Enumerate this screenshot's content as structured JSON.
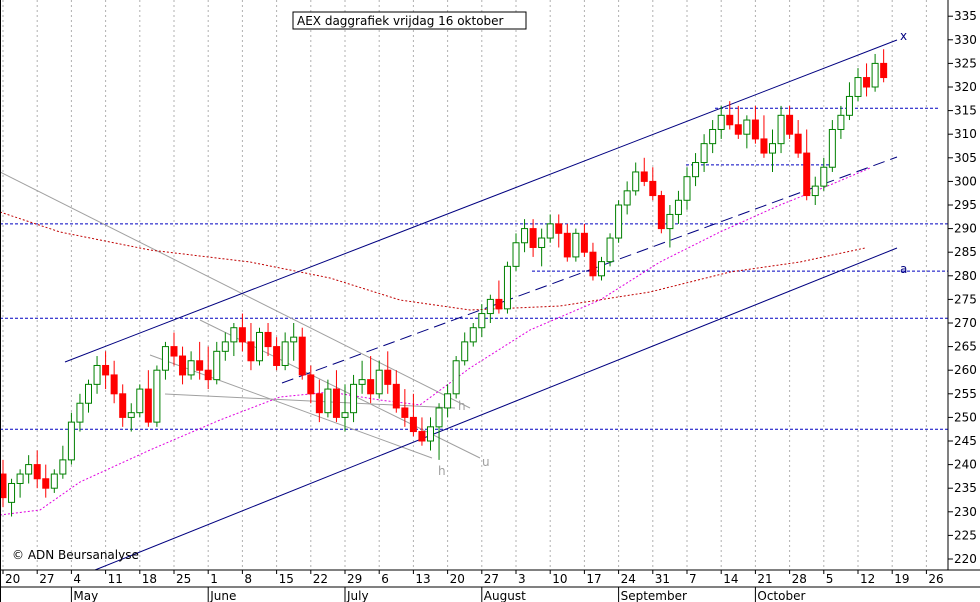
{
  "chart_data": {
    "type": "candlestick",
    "title": "AEX daggrafiek vrijdag 16 oktober",
    "copyright": "© ADN Beursanalyse",
    "y_axis": {
      "position": "right",
      "ylim": [
        219,
        338
      ],
      "ticks": [
        220,
        225,
        230,
        235,
        240,
        245,
        250,
        255,
        260,
        265,
        270,
        275,
        280,
        285,
        290,
        295,
        300,
        305,
        310,
        315,
        320,
        325,
        330,
        335
      ]
    },
    "x_axis": {
      "week_labels": [
        "20",
        "27",
        "4",
        "11",
        "18",
        "25",
        "1",
        "8",
        "15",
        "22",
        "29",
        "6",
        "13",
        "20",
        "27",
        "3",
        "10",
        "17",
        "24",
        "31",
        "7",
        "14",
        "21",
        "28",
        "5",
        "12",
        "19",
        "26"
      ],
      "months": [
        {
          "label": "May",
          "week_index": 2
        },
        {
          "label": "June",
          "week_index": 6
        },
        {
          "label": "July",
          "week_index": 10
        },
        {
          "label": "August",
          "week_index": 14
        },
        {
          "label": "September",
          "week_index": 18
        },
        {
          "label": "October",
          "week_index": 22
        }
      ]
    },
    "grid": {
      "vertical_dotted": true,
      "horizontal": false
    },
    "horizontal_levels": [
      315.5,
      303.5,
      291,
      281,
      271,
      247.5
    ],
    "annotations": [
      {
        "label": "x",
        "color": "#000080"
      },
      {
        "label": "a",
        "color": "#000080"
      },
      {
        "label": "h",
        "color": "#a0a0a0"
      },
      {
        "label": "u",
        "color": "#a0a0a0"
      },
      {
        "label": "h",
        "color": "#a0a0a0"
      }
    ],
    "colors": {
      "up": "#008000",
      "down": "#ff0000",
      "trend": "#000080",
      "level": "#0000c0",
      "ma_long": "#c00000",
      "ma_short": "#e000e0",
      "helper": "#a0a0a0"
    },
    "candles": [
      [
        238,
        241,
        231,
        233
      ],
      [
        232,
        237,
        229,
        236
      ],
      [
        236,
        239,
        233,
        238
      ],
      [
        238,
        242,
        236,
        240
      ],
      [
        240,
        243,
        235,
        237
      ],
      [
        237,
        240,
        233,
        235
      ],
      [
        235,
        239,
        234,
        238
      ],
      [
        238,
        244,
        237,
        241
      ],
      [
        241,
        251,
        240,
        249
      ],
      [
        249,
        255,
        247,
        253
      ],
      [
        253,
        258,
        251,
        257
      ],
      [
        257,
        263,
        255,
        261
      ],
      [
        261,
        264,
        256,
        259
      ],
      [
        259,
        262,
        253,
        255
      ],
      [
        255,
        257,
        248,
        250
      ],
      [
        250,
        253,
        247,
        251
      ],
      [
        251,
        257,
        250,
        256
      ],
      [
        256,
        260,
        248,
        249
      ],
      [
        249,
        261,
        248,
        260
      ],
      [
        260,
        266,
        258,
        265
      ],
      [
        265,
        268,
        261,
        263
      ],
      [
        263,
        265,
        257,
        259
      ],
      [
        259,
        264,
        258,
        262
      ],
      [
        262,
        266,
        258,
        260
      ],
      [
        260,
        265,
        256,
        258
      ],
      [
        258,
        266,
        257,
        264
      ],
      [
        264,
        268,
        262,
        266
      ],
      [
        266,
        270,
        263,
        269
      ],
      [
        269,
        272,
        264,
        266
      ],
      [
        266,
        270,
        260,
        262
      ],
      [
        262,
        269,
        261,
        268
      ],
      [
        268,
        270,
        263,
        265
      ],
      [
        265,
        267,
        260,
        261
      ],
      [
        261,
        268,
        260,
        266
      ],
      [
        266,
        270,
        262,
        267
      ],
      [
        267,
        269,
        258,
        259
      ],
      [
        259,
        261,
        253,
        255
      ],
      [
        255,
        258,
        249,
        251
      ],
      [
        251,
        258,
        250,
        256
      ],
      [
        256,
        260,
        249,
        250
      ],
      [
        250,
        257,
        247,
        251
      ],
      [
        251,
        259,
        249,
        257
      ],
      [
        257,
        262,
        255,
        258
      ],
      [
        258,
        263,
        253,
        255
      ],
      [
        255,
        262,
        254,
        260
      ],
      [
        260,
        264,
        255,
        257
      ],
      [
        257,
        260,
        251,
        252
      ],
      [
        252,
        256,
        248,
        250
      ],
      [
        250,
        255,
        246,
        247
      ],
      [
        247,
        250,
        244,
        245
      ],
      [
        245,
        250,
        243,
        248
      ],
      [
        248,
        253,
        241,
        252
      ],
      [
        252,
        257,
        250,
        255
      ],
      [
        255,
        263,
        254,
        262
      ],
      [
        262,
        268,
        261,
        266
      ],
      [
        266,
        270,
        265,
        269
      ],
      [
        269,
        274,
        267,
        272
      ],
      [
        272,
        276,
        270,
        275
      ],
      [
        275,
        279,
        272,
        273
      ],
      [
        273,
        283,
        272,
        282
      ],
      [
        282,
        289,
        281,
        287
      ],
      [
        287,
        292,
        285,
        290
      ],
      [
        290,
        292,
        284,
        286
      ],
      [
        286,
        290,
        282,
        288
      ],
      [
        288,
        293,
        287,
        291
      ],
      [
        291,
        293,
        286,
        289
      ],
      [
        289,
        291,
        283,
        284
      ],
      [
        284,
        290,
        283,
        289
      ],
      [
        289,
        291,
        284,
        285
      ],
      [
        285,
        287,
        279,
        280
      ],
      [
        280,
        284,
        279,
        283
      ],
      [
        283,
        289,
        282,
        288
      ],
      [
        288,
        296,
        287,
        295
      ],
      [
        295,
        300,
        293,
        298
      ],
      [
        298,
        304,
        297,
        302
      ],
      [
        302,
        305,
        299,
        300
      ],
      [
        300,
        303,
        296,
        297
      ],
      [
        297,
        298,
        289,
        290
      ],
      [
        290,
        295,
        286,
        293
      ],
      [
        293,
        298,
        291,
        296
      ],
      [
        296,
        303,
        294,
        301
      ],
      [
        301,
        306,
        299,
        304
      ],
      [
        304,
        310,
        302,
        308
      ],
      [
        308,
        313,
        306,
        311
      ],
      [
        311,
        316,
        309,
        314
      ],
      [
        314,
        317,
        311,
        312
      ],
      [
        312,
        316,
        309,
        310
      ],
      [
        310,
        314,
        307,
        313
      ],
      [
        313,
        316,
        308,
        309
      ],
      [
        309,
        314,
        305,
        306
      ],
      [
        306,
        311,
        302,
        308
      ],
      [
        308,
        316,
        306,
        314
      ],
      [
        314,
        316,
        309,
        310
      ],
      [
        310,
        313,
        305,
        306
      ],
      [
        306,
        311,
        296,
        297
      ],
      [
        297,
        301,
        295,
        299
      ],
      [
        299,
        305,
        298,
        303
      ],
      [
        303,
        313,
        302,
        311
      ],
      [
        311,
        316,
        309,
        314
      ],
      [
        314,
        321,
        313,
        318
      ],
      [
        318,
        324,
        317,
        322
      ],
      [
        322,
        325,
        318,
        320
      ],
      [
        320,
        327,
        319,
        325
      ],
      [
        325,
        328,
        321,
        322
      ]
    ]
  }
}
